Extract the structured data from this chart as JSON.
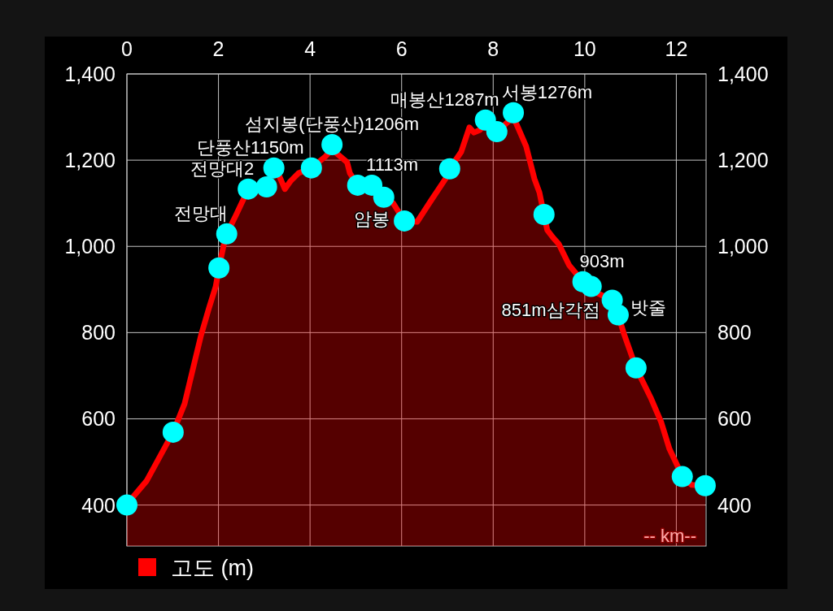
{
  "chart_data": {
    "type": "area",
    "xlabel": "-- km--",
    "xlim": [
      0,
      12.65
    ],
    "xticks": [
      0,
      2,
      4,
      6,
      8,
      10,
      12
    ],
    "ylim": [
      305,
      1400
    ],
    "yticks": [
      400,
      600,
      800,
      {
        "value": 1000,
        "label": "1,000"
      },
      {
        "value": 1200,
        "label": "1,200"
      },
      {
        "value": 1400,
        "label": "1,400"
      }
    ],
    "y2lim": [
      305,
      1400
    ],
    "y2ticks": [
      400,
      600,
      800,
      {
        "value": 1000,
        "label": "1,000"
      },
      {
        "value": 1200,
        "label": "1,200"
      },
      {
        "value": 1400,
        "label": "1,400"
      }
    ],
    "grid": true,
    "legend": "bottom",
    "series": [
      {
        "name": "고도 (m)",
        "color": "#ff0000",
        "x": [
          0,
          0.12,
          0.43,
          1.01,
          1.26,
          1.49,
          1.62,
          1.79,
          1.94,
          2.01,
          2.11,
          2.18,
          2.38,
          2.65,
          3.05,
          3.21,
          3.32,
          3.45,
          3.57,
          3.75,
          4.03,
          4.33,
          4.48,
          4.81,
          4.87,
          5.04,
          5.35,
          5.61,
          5.81,
          6.06,
          6.34,
          6.64,
          6.96,
          7.05,
          7.3,
          7.48,
          7.58,
          7.71,
          7.83,
          8.08,
          8.44,
          8.54,
          8.72,
          8.9,
          9.01,
          9.11,
          9.18,
          9.31,
          9.43,
          9.66,
          9.96,
          10.14,
          10.25,
          10.6,
          10.73,
          10.85,
          11.12,
          11.44,
          11.67,
          11.85,
          12.02,
          12.13,
          12.33,
          12.63
        ],
        "values": [
          400,
          417,
          456,
          569,
          635,
          737,
          794,
          856,
          907,
          950,
          1001,
          1029,
          1072,
          1133,
          1138,
          1182,
          1165,
          1133,
          1151,
          1170,
          1182,
          1208,
          1225,
          1195,
          1170,
          1142,
          1142,
          1114,
          1101,
          1059,
          1057,
          1106,
          1157,
          1180,
          1219,
          1276,
          1264,
          1270,
          1285,
          1266,
          1300,
          1276,
          1232,
          1157,
          1125,
          1074,
          1038,
          1020,
          1006,
          956,
          918,
          907,
          893,
          875,
          841,
          799,
          718,
          649,
          592,
          530,
          492,
          466,
          447,
          445
        ]
      },
      {
        "type": "scatter",
        "color": "#00ffff",
        "marker": "circle",
        "x": [
          0,
          1.01,
          2.01,
          2.18,
          2.65,
          3.05,
          3.21,
          4.03,
          4.48,
          5.04,
          5.35,
          5.61,
          6.06,
          7.05,
          7.83,
          8.08,
          8.44,
          9.11,
          9.96,
          10.14,
          10.6,
          10.73,
          11.12,
          12.13,
          12.63
        ],
        "values": [
          400,
          569,
          950,
          1029,
          1133,
          1138,
          1182,
          1182,
          1236,
          1142,
          1142,
          1114,
          1059,
          1180,
          1293,
          1266,
          1310,
          1074,
          918,
          907,
          875,
          841,
          718,
          466,
          445
        ]
      }
    ],
    "annotations": [
      {
        "text": "전망대",
        "x": 2.18,
        "y": 1029
      },
      {
        "text": "전망대2",
        "x": 2.65,
        "y": 1133
      },
      {
        "text": "단풍산1150m",
        "x": 3.21,
        "y": 1182
      },
      {
        "text": "섬지봉(단풍산)1206m",
        "x": 4.48,
        "y": 1236
      },
      {
        "text": "1113m",
        "x": 5.35,
        "y": 1142
      },
      {
        "text": "암봉",
        "x": 5.61,
        "y": 1114
      },
      {
        "text": "매봉산1287m",
        "x": 7.83,
        "y": 1293
      },
      {
        "text": "서봉1276m",
        "x": 8.44,
        "y": 1310
      },
      {
        "text": "903m",
        "x": 9.96,
        "y": 918
      },
      {
        "text": "851m삼각점",
        "x": 10.6,
        "y": 875
      },
      {
        "text": "밧줄",
        "x": 10.73,
        "y": 841
      }
    ]
  }
}
